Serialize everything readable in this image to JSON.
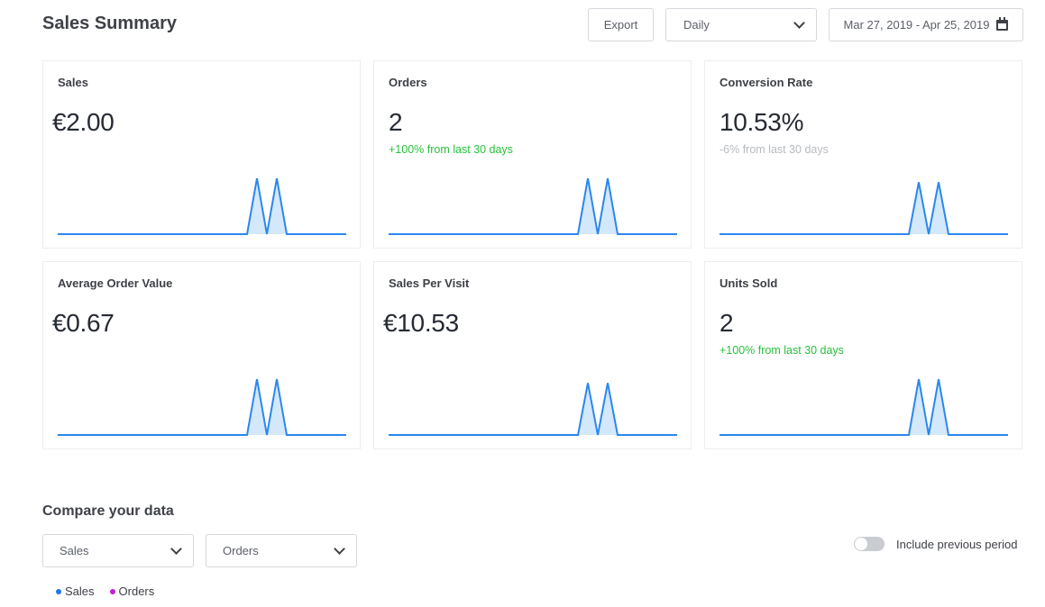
{
  "header": {
    "title": "Sales Summary",
    "export_label": "Export",
    "period_value": "Daily",
    "date_range": "Mar 27, 2019 - Apr 25, 2019"
  },
  "colors": {
    "spark_line": "#2b87ee",
    "spark_fill": "#d4e8fb",
    "positive_change": "#27c23c",
    "neutral_change": "#b8bbc1",
    "sales_legend": "#1f77e8",
    "orders_legend": "#c21fd6"
  },
  "cards": [
    {
      "title": "Sales",
      "value": "€2.00",
      "change": "",
      "trend": "none",
      "peaks": [
        1,
        1
      ]
    },
    {
      "title": "Orders",
      "value": "2",
      "change": "+100% from last 30 days",
      "trend": "up",
      "peaks": [
        1,
        1
      ]
    },
    {
      "title": "Conversion Rate",
      "value": "10.53%",
      "change": "-6% from last 30 days",
      "trend": "down",
      "peaks": [
        0.93,
        0.93
      ]
    },
    {
      "title": "Average Order Value",
      "value": "€0.67",
      "change": "",
      "trend": "none",
      "peaks": [
        1,
        1
      ]
    },
    {
      "title": "Sales Per Visit",
      "value": "€10.53",
      "change": "",
      "trend": "none",
      "peaks": [
        0.93,
        0.93
      ]
    },
    {
      "title": "Units Sold",
      "value": "2",
      "change": "+100% from last 30 days",
      "trend": "up",
      "peaks": [
        1,
        1
      ]
    }
  ],
  "compare": {
    "title": "Compare your data",
    "select_a": "Sales",
    "select_b": "Orders",
    "toggle_label": "Include previous period",
    "toggle_on": false,
    "legend": [
      {
        "label": "Sales",
        "color": "#1f77e8"
      },
      {
        "label": "Orders",
        "color": "#c21fd6"
      }
    ]
  }
}
